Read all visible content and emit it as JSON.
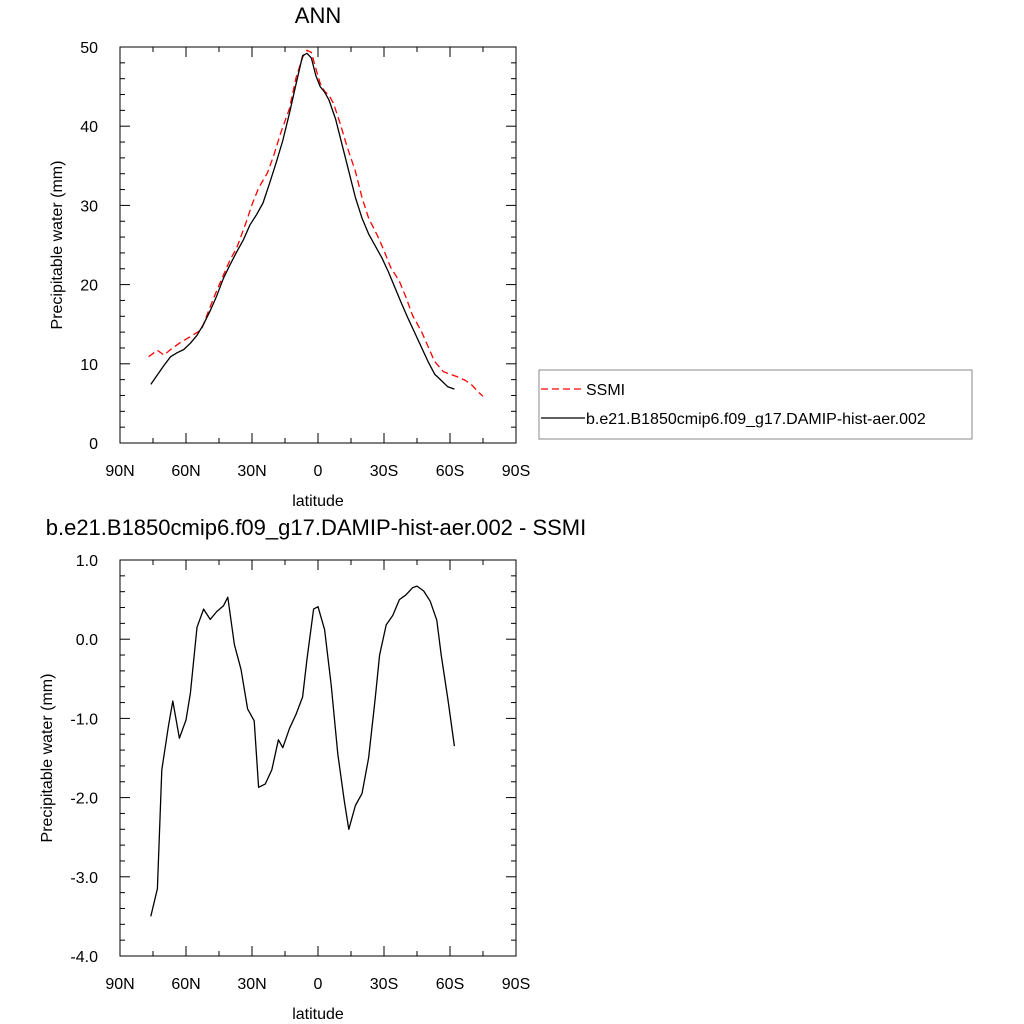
{
  "chart_data": [
    {
      "type": "line",
      "title": "ANN",
      "xlabel": "latitude",
      "ylabel": "Precipitable water (mm)",
      "xlim": [
        90,
        -90
      ],
      "ylim": [
        0,
        50
      ],
      "xticks": [
        90,
        60,
        30,
        0,
        -30,
        -60,
        -90
      ],
      "xtick_labels": [
        "90N",
        "60N",
        "30N",
        "0",
        "30S",
        "60S",
        "90S"
      ],
      "yticks": [
        0,
        10,
        20,
        30,
        40,
        50
      ],
      "ytick_labels": [
        "0",
        "10",
        "20",
        "30",
        "40",
        "50"
      ],
      "grid": false,
      "legend_position": "right",
      "series": [
        {
          "name": "SSMI",
          "color": "#ff0000",
          "dash": "dashed",
          "x": [
            77,
            73,
            70,
            67,
            63,
            60,
            57,
            53,
            50,
            47,
            43,
            40,
            37,
            33,
            30,
            27,
            23,
            20,
            17,
            13,
            10,
            7,
            5,
            3,
            1,
            -1,
            -3,
            -5,
            -7,
            -10,
            -13,
            -17,
            -20,
            -23,
            -27,
            -30,
            -33,
            -37,
            -40,
            -43,
            -47,
            -50,
            -53,
            -57,
            -60,
            -63,
            -67,
            -70,
            -73,
            -75
          ],
          "y": [
            10.9,
            11.7,
            11.1,
            11.8,
            12.6,
            13.1,
            13.6,
            14.3,
            16.5,
            18.6,
            21.2,
            23.1,
            24.6,
            27.6,
            30.1,
            32.2,
            34.1,
            36.4,
            39.1,
            42.2,
            46.1,
            48.7,
            49.6,
            49.3,
            47.3,
            45.4,
            44.4,
            43.9,
            42.9,
            40.4,
            37.6,
            34.3,
            31.0,
            28.4,
            26.2,
            24.3,
            22.2,
            20.4,
            18.4,
            16.1,
            14.1,
            12.2,
            10.3,
            9.0,
            8.7,
            8.4,
            7.9,
            7.3,
            6.4,
            5.9
          ]
        },
        {
          "name": "b.e21.B1850cmip6.f09_g17.DAMIP-hist-aer.002",
          "color": "#000000",
          "dash": "solid",
          "x": [
            76,
            73,
            70,
            67,
            64,
            61,
            58,
            55,
            52,
            49,
            46,
            43,
            40,
            37,
            34,
            31,
            28,
            25,
            22,
            19,
            16,
            13,
            10,
            7,
            5,
            3,
            1,
            -1,
            -3,
            -5,
            -8,
            -11,
            -14,
            -17,
            -20,
            -23,
            -26,
            -29,
            -32,
            -35,
            -38,
            -41,
            -44,
            -47,
            -50,
            -53,
            -56,
            -59,
            -62
          ],
          "y": [
            7.4,
            8.6,
            9.8,
            10.9,
            11.4,
            11.8,
            12.6,
            13.6,
            15.0,
            16.7,
            18.6,
            20.8,
            22.5,
            24.1,
            25.6,
            27.5,
            28.8,
            30.3,
            32.8,
            35.4,
            38.2,
            41.6,
            45.3,
            48.9,
            49.2,
            48.6,
            46.4,
            45.0,
            44.3,
            43.3,
            40.9,
            37.6,
            34.3,
            31.0,
            28.4,
            26.4,
            24.9,
            23.4,
            21.6,
            19.6,
            17.6,
            15.7,
            13.9,
            12.1,
            10.3,
            8.7,
            7.9,
            7.1,
            6.8
          ]
        }
      ]
    },
    {
      "type": "line",
      "title": "b.e21.B1850cmip6.f09_g17.DAMIP-hist-aer.002 - SSMI",
      "xlabel": "latitude",
      "ylabel": "Precipitable water (mm)",
      "xlim": [
        90,
        -90
      ],
      "ylim": [
        -4,
        1
      ],
      "xticks": [
        90,
        60,
        30,
        0,
        -30,
        -60,
        -90
      ],
      "xtick_labels": [
        "90N",
        "60N",
        "30N",
        "0",
        "30S",
        "60S",
        "90S"
      ],
      "yticks": [
        -4,
        -3,
        -2,
        -1,
        0,
        1
      ],
      "ytick_labels": [
        "-4.0",
        "-3.0",
        "-2.0",
        "-1.0",
        "0.0",
        "1.0"
      ],
      "grid": false,
      "series": [
        {
          "color": "#000000",
          "dash": "solid",
          "x": [
            76,
            73,
            71,
            68,
            66,
            63,
            60,
            58,
            55,
            52,
            49,
            46,
            43,
            41,
            38,
            35,
            32,
            29,
            27,
            24,
            21,
            18,
            16,
            13,
            10,
            7,
            5,
            2,
            0,
            -3,
            -6,
            -9,
            -12,
            -14,
            -17,
            -20,
            -23,
            -26,
            -28,
            -31,
            -34,
            -37,
            -40,
            -43,
            -45,
            -48,
            -51,
            -54,
            -56,
            -59,
            -62
          ],
          "y": [
            -3.5,
            -3.15,
            -1.65,
            -1.1,
            -0.78,
            -1.25,
            -1.02,
            -0.68,
            0.15,
            0.38,
            0.25,
            0.35,
            0.42,
            0.53,
            -0.07,
            -0.38,
            -0.88,
            -1.03,
            -1.87,
            -1.83,
            -1.65,
            -1.27,
            -1.37,
            -1.13,
            -0.95,
            -0.73,
            -0.25,
            0.38,
            0.41,
            0.12,
            -0.58,
            -1.45,
            -2.05,
            -2.4,
            -2.1,
            -1.95,
            -1.5,
            -0.75,
            -0.2,
            0.18,
            0.3,
            0.5,
            0.56,
            0.65,
            0.67,
            0.61,
            0.48,
            0.24,
            -0.2,
            -0.75,
            -1.35
          ]
        }
      ]
    }
  ]
}
